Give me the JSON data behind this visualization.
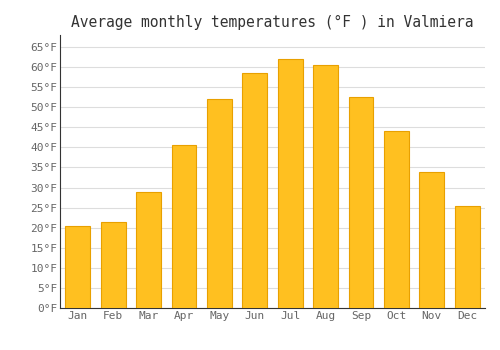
{
  "months": [
    "Jan",
    "Feb",
    "Mar",
    "Apr",
    "May",
    "Jun",
    "Jul",
    "Aug",
    "Sep",
    "Oct",
    "Nov",
    "Dec"
  ],
  "values": [
    20.5,
    21.5,
    29.0,
    40.5,
    52.0,
    58.5,
    62.0,
    60.5,
    52.5,
    44.0,
    34.0,
    25.5
  ],
  "bar_color": "#FFC020",
  "bar_edge_color": "#E8A000",
  "title": "Average monthly temperatures (°F ) in Valmiera",
  "title_fontsize": 10.5,
  "ylim": [
    0,
    68
  ],
  "yticks": [
    0,
    5,
    10,
    15,
    20,
    25,
    30,
    35,
    40,
    45,
    50,
    55,
    60,
    65
  ],
  "ytick_labels": [
    "0°F",
    "5°F",
    "10°F",
    "15°F",
    "20°F",
    "25°F",
    "30°F",
    "35°F",
    "40°F",
    "45°F",
    "50°F",
    "55°F",
    "60°F",
    "65°F"
  ],
  "tick_fontsize": 8,
  "background_color": "#ffffff",
  "grid_color": "#dddddd",
  "font_family": "monospace",
  "title_color": "#333333",
  "tick_color": "#666666",
  "spine_color": "#333333"
}
